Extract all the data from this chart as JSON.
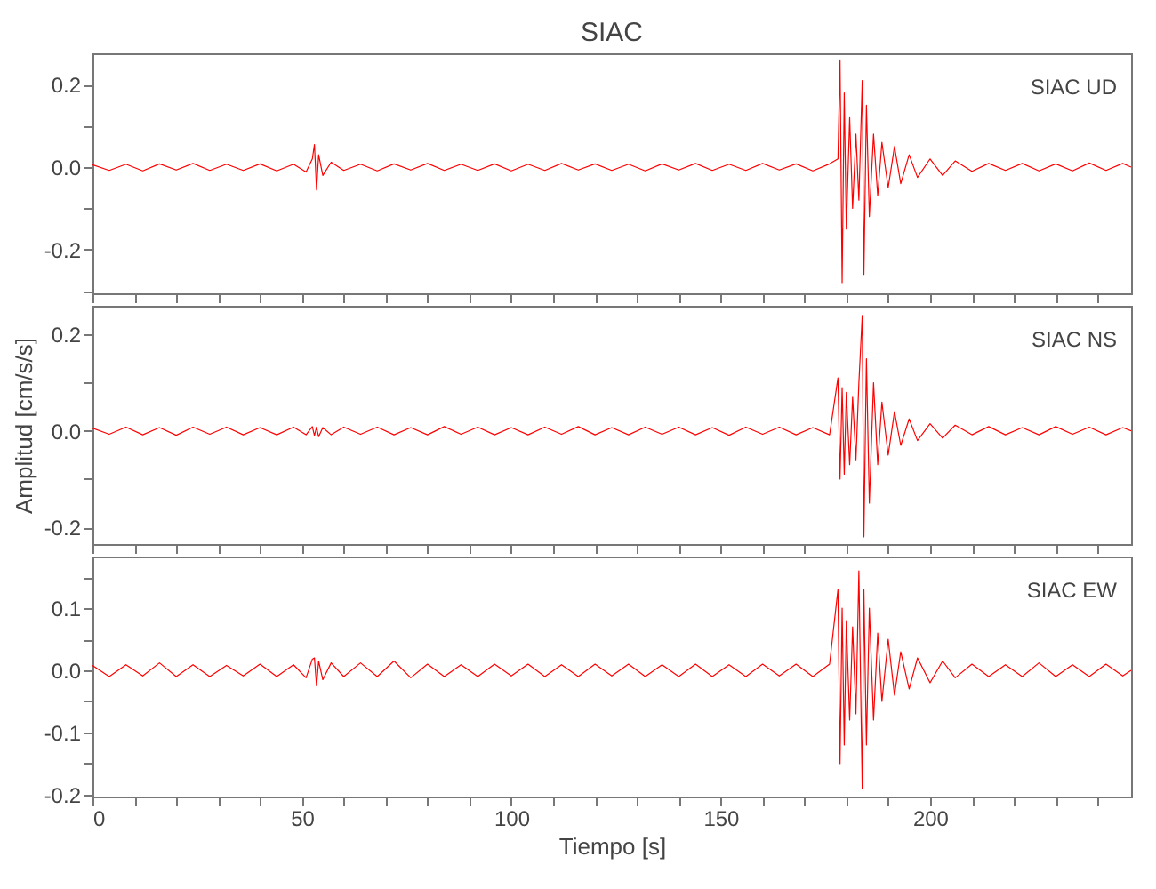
{
  "chart_data": [
    {
      "type": "line",
      "title": "SIAC",
      "annotations": [
        "SIAC UD"
      ],
      "tick_labels": "y",
      "grid": false,
      "xlim": [
        0,
        248
      ],
      "ylim": [
        -0.306,
        0.276
      ],
      "xticks": [
        0,
        {
          "value": 10,
          "label": null
        },
        {
          "value": 20,
          "label": null
        },
        {
          "value": 30,
          "label": null
        },
        {
          "value": 40,
          "label": null
        },
        50,
        {
          "value": 60,
          "label": null
        },
        {
          "value": 70,
          "label": null
        },
        {
          "value": 80,
          "label": null
        },
        {
          "value": 90,
          "label": null
        },
        100,
        {
          "value": 110,
          "label": null
        },
        {
          "value": 120,
          "label": null
        },
        {
          "value": 130,
          "label": null
        },
        {
          "value": 140,
          "label": null
        },
        150,
        {
          "value": 160,
          "label": null
        },
        {
          "value": 170,
          "label": null
        },
        {
          "value": 180,
          "label": null
        },
        {
          "value": 190,
          "label": null
        },
        200,
        {
          "value": 210,
          "label": null
        },
        {
          "value": 220,
          "label": null
        },
        {
          "value": 230,
          "label": null
        },
        {
          "value": 240,
          "label": null
        }
      ],
      "yticks": [
        {
          "value": -0.3,
          "label": null
        },
        -0.2,
        {
          "value": -0.1,
          "label": null
        },
        {
          "value": 0,
          "label": "0.0"
        },
        {
          "value": 0.1,
          "label": null
        },
        0.2
      ],
      "x": [
        0,
        4,
        8,
        12,
        16,
        20,
        24,
        28,
        32,
        36,
        40,
        44,
        48,
        51,
        52.5,
        53,
        53.5,
        54,
        55,
        57,
        60,
        64,
        68,
        72,
        76,
        80,
        84,
        88,
        92,
        96,
        100,
        104,
        108,
        112,
        116,
        120,
        124,
        128,
        132,
        136,
        140,
        144,
        148,
        152,
        156,
        160,
        164,
        168,
        172,
        176,
        178,
        178.5,
        179,
        179.5,
        180,
        180.8,
        181.5,
        182.3,
        183,
        183.8,
        184.2,
        184.8,
        185.5,
        186.5,
        187.5,
        188.5,
        190,
        191.5,
        193,
        195,
        197,
        200,
        203,
        206,
        210,
        214,
        218,
        222,
        226,
        230,
        234,
        238,
        242,
        246,
        248
      ],
      "series": [
        {
          "color": "#ff0000",
          "values": [
            0.006,
            -0.008,
            0.007,
            -0.009,
            0.008,
            -0.007,
            0.009,
            -0.008,
            0.007,
            -0.008,
            0.008,
            -0.009,
            0.007,
            -0.012,
            0.02,
            0.055,
            -0.055,
            0.03,
            -0.02,
            0.012,
            -0.008,
            0.007,
            -0.009,
            0.008,
            -0.007,
            0.009,
            -0.008,
            0.007,
            -0.008,
            0.008,
            -0.009,
            0.007,
            -0.008,
            0.009,
            -0.007,
            0.008,
            -0.008,
            0.007,
            -0.009,
            0.008,
            -0.007,
            0.009,
            -0.008,
            0.007,
            -0.008,
            0.009,
            -0.007,
            0.008,
            -0.009,
            0.008,
            0.02,
            0.26,
            -0.28,
            0.18,
            -0.15,
            0.12,
            -0.1,
            0.08,
            -0.08,
            0.21,
            -0.26,
            0.15,
            -0.12,
            0.08,
            -0.07,
            0.06,
            -0.05,
            0.05,
            -0.04,
            0.03,
            -0.025,
            0.02,
            -0.02,
            0.015,
            -0.01,
            0.009,
            -0.008,
            0.009,
            -0.009,
            0.008,
            -0.009,
            0.01,
            -0.008,
            0.009,
            0.0
          ]
        }
      ]
    },
    {
      "type": "line",
      "ylabel": "Amplitud [cm/s/s]",
      "annotations": [
        "SIAC NS"
      ],
      "tick_labels": "y",
      "grid": false,
      "xlim": [
        0,
        248
      ],
      "ylim": [
        -0.235,
        0.26
      ],
      "xticks": [
        0,
        {
          "value": 10,
          "label": null
        },
        {
          "value": 20,
          "label": null
        },
        {
          "value": 30,
          "label": null
        },
        {
          "value": 40,
          "label": null
        },
        50,
        {
          "value": 60,
          "label": null
        },
        {
          "value": 70,
          "label": null
        },
        {
          "value": 80,
          "label": null
        },
        {
          "value": 90,
          "label": null
        },
        100,
        {
          "value": 110,
          "label": null
        },
        {
          "value": 120,
          "label": null
        },
        {
          "value": 130,
          "label": null
        },
        {
          "value": 140,
          "label": null
        },
        150,
        {
          "value": 160,
          "label": null
        },
        {
          "value": 170,
          "label": null
        },
        {
          "value": 180,
          "label": null
        },
        {
          "value": 190,
          "label": null
        },
        200,
        {
          "value": 210,
          "label": null
        },
        {
          "value": 220,
          "label": null
        },
        {
          "value": 230,
          "label": null
        },
        {
          "value": 240,
          "label": null
        }
      ],
      "yticks": [
        -0.2,
        {
          "value": -0.1,
          "label": null
        },
        {
          "value": 0,
          "label": "0.0"
        },
        {
          "value": 0.1,
          "label": null
        },
        0.2
      ],
      "x": [
        0,
        4,
        8,
        12,
        16,
        20,
        24,
        28,
        32,
        36,
        40,
        44,
        48,
        51,
        52.5,
        53,
        53.5,
        54,
        55,
        57,
        60,
        64,
        68,
        72,
        76,
        80,
        84,
        88,
        92,
        96,
        100,
        104,
        108,
        112,
        116,
        120,
        124,
        128,
        132,
        136,
        140,
        144,
        148,
        152,
        156,
        160,
        164,
        168,
        172,
        176,
        178,
        178.5,
        179,
        179.5,
        180,
        180.8,
        181.5,
        182.3,
        183,
        183.8,
        184.2,
        184.8,
        185.5,
        186.5,
        187.5,
        188.5,
        190,
        191.5,
        193,
        195,
        197,
        200,
        203,
        206,
        210,
        214,
        218,
        222,
        226,
        230,
        234,
        238,
        242,
        246,
        248
      ],
      "series": [
        {
          "color": "#ff0000",
          "values": [
            0.006,
            -0.007,
            0.008,
            -0.008,
            0.007,
            -0.009,
            0.008,
            -0.007,
            0.008,
            -0.008,
            0.007,
            -0.008,
            0.008,
            -0.008,
            0.009,
            -0.01,
            0.008,
            -0.012,
            0.007,
            -0.008,
            0.008,
            -0.007,
            0.008,
            -0.008,
            0.007,
            -0.008,
            0.009,
            -0.007,
            0.008,
            -0.008,
            0.007,
            -0.008,
            0.008,
            -0.007,
            0.009,
            -0.008,
            0.007,
            -0.008,
            0.008,
            -0.007,
            0.008,
            -0.008,
            0.007,
            -0.009,
            0.008,
            -0.007,
            0.008,
            -0.008,
            0.007,
            -0.008,
            0.11,
            -0.1,
            0.09,
            -0.09,
            0.08,
            -0.07,
            0.07,
            -0.06,
            0.1,
            0.24,
            -0.22,
            0.15,
            -0.15,
            0.1,
            -0.07,
            0.06,
            -0.05,
            0.04,
            -0.03,
            0.025,
            -0.02,
            0.015,
            -0.015,
            0.012,
            -0.008,
            0.009,
            -0.008,
            0.007,
            -0.008,
            0.009,
            -0.007,
            0.008,
            -0.008,
            0.007,
            0.0
          ]
        }
      ]
    },
    {
      "type": "line",
      "xlabel": "Tiempo [s]",
      "annotations": [
        "SIAC EW"
      ],
      "grid": false,
      "xlim": [
        0,
        248
      ],
      "ylim": [
        -0.203,
        0.183
      ],
      "xticks": [
        0,
        {
          "value": 10,
          "label": null
        },
        {
          "value": 20,
          "label": null
        },
        {
          "value": 30,
          "label": null
        },
        {
          "value": 40,
          "label": null
        },
        50,
        {
          "value": 60,
          "label": null
        },
        {
          "value": 70,
          "label": null
        },
        {
          "value": 80,
          "label": null
        },
        {
          "value": 90,
          "label": null
        },
        100,
        {
          "value": 110,
          "label": null
        },
        {
          "value": 120,
          "label": null
        },
        {
          "value": 130,
          "label": null
        },
        {
          "value": 140,
          "label": null
        },
        150,
        {
          "value": 160,
          "label": null
        },
        {
          "value": 170,
          "label": null
        },
        {
          "value": 180,
          "label": null
        },
        {
          "value": 190,
          "label": null
        },
        200,
        {
          "value": 210,
          "label": null
        },
        {
          "value": 220,
          "label": null
        },
        {
          "value": 230,
          "label": null
        },
        {
          "value": 240,
          "label": null
        }
      ],
      "yticks": [
        -0.2,
        {
          "value": -0.15,
          "label": null
        },
        -0.1,
        {
          "value": -0.05,
          "label": null
        },
        {
          "value": 0,
          "label": "0.0"
        },
        {
          "value": 0.05,
          "label": null
        },
        0.1,
        {
          "value": 0.15,
          "label": null
        }
      ],
      "x": [
        0,
        4,
        8,
        12,
        16,
        20,
        24,
        28,
        32,
        36,
        40,
        44,
        48,
        51,
        52.5,
        53,
        53.5,
        54,
        55,
        57,
        60,
        64,
        68,
        72,
        76,
        80,
        84,
        88,
        92,
        96,
        100,
        104,
        108,
        112,
        116,
        120,
        124,
        128,
        132,
        136,
        140,
        144,
        148,
        152,
        156,
        160,
        164,
        168,
        172,
        176,
        178,
        178.5,
        179,
        179.5,
        180,
        180.8,
        181.5,
        182.3,
        183,
        183.8,
        184.2,
        184.8,
        185.5,
        186.5,
        187.5,
        188.5,
        190,
        191.5,
        193,
        195,
        197,
        200,
        203,
        206,
        210,
        214,
        218,
        222,
        226,
        230,
        234,
        238,
        242,
        246,
        248
      ],
      "series": [
        {
          "color": "#ff0000",
          "values": [
            0.008,
            -0.01,
            0.009,
            -0.009,
            0.012,
            -0.01,
            0.009,
            -0.01,
            0.008,
            -0.009,
            0.01,
            -0.01,
            0.009,
            -0.012,
            0.018,
            0.02,
            -0.025,
            0.015,
            -0.015,
            0.012,
            -0.01,
            0.012,
            -0.01,
            0.015,
            -0.012,
            0.01,
            -0.01,
            0.009,
            -0.01,
            0.01,
            -0.009,
            0.01,
            -0.01,
            0.009,
            -0.01,
            0.01,
            -0.009,
            0.01,
            -0.01,
            0.009,
            -0.01,
            0.01,
            -0.01,
            0.009,
            -0.01,
            0.01,
            -0.009,
            0.01,
            -0.01,
            0.01,
            0.13,
            -0.15,
            0.1,
            -0.12,
            0.08,
            -0.08,
            0.07,
            -0.07,
            0.16,
            -0.19,
            0.13,
            -0.12,
            0.1,
            -0.08,
            0.06,
            -0.05,
            0.05,
            -0.04,
            0.03,
            -0.03,
            0.02,
            -0.02,
            0.015,
            -0.012,
            0.01,
            -0.01,
            0.009,
            -0.01,
            0.012,
            -0.01,
            0.009,
            -0.01,
            0.01,
            -0.009,
            0.0
          ]
        }
      ]
    }
  ]
}
